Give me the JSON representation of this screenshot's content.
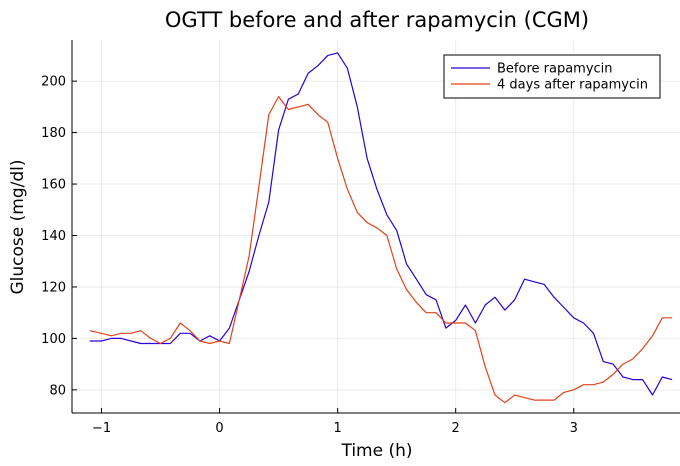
{
  "chart_data": {
    "type": "line",
    "title": "OGTT before and after rapamycin (CGM)",
    "xlabel": "Time (h)",
    "ylabel": "Glucose (mg/dl)",
    "xlim": [
      -1.25,
      3.9
    ],
    "ylim": [
      71,
      216
    ],
    "xticks": [
      -1,
      0,
      1,
      2,
      3
    ],
    "xtick_labels": [
      "−1",
      "0",
      "1",
      "2",
      "3"
    ],
    "yticks": [
      80,
      100,
      120,
      140,
      160,
      180,
      200
    ],
    "ytick_labels": [
      "80",
      "100",
      "120",
      "140",
      "160",
      "180",
      "200"
    ],
    "grid": true,
    "legend": {
      "position": "top-right"
    },
    "series": [
      {
        "name": "Before rapamycin",
        "color": "#2a00d5",
        "x": [
          -1.1,
          -1.0,
          -0.917,
          -0.833,
          -0.75,
          -0.667,
          -0.583,
          -0.5,
          -0.417,
          -0.333,
          -0.25,
          -0.167,
          -0.083,
          0.0,
          0.083,
          0.167,
          0.25,
          0.333,
          0.417,
          0.5,
          0.583,
          0.667,
          0.75,
          0.833,
          0.917,
          1.0,
          1.083,
          1.167,
          1.25,
          1.333,
          1.417,
          1.5,
          1.583,
          1.667,
          1.75,
          1.833,
          1.917,
          2.0,
          2.083,
          2.167,
          2.25,
          2.333,
          2.417,
          2.5,
          2.583,
          2.667,
          2.75,
          2.833,
          2.917,
          3.0,
          3.083,
          3.167,
          3.25,
          3.333,
          3.417,
          3.5,
          3.583,
          3.667,
          3.75,
          3.833
        ],
        "y": [
          99,
          99,
          100,
          100,
          99,
          98,
          98,
          98,
          98,
          102,
          102,
          99,
          101,
          99,
          104,
          115,
          126,
          140,
          153,
          181,
          193,
          195,
          203,
          206,
          210,
          211,
          205,
          190,
          170,
          158,
          148,
          142,
          129,
          123,
          117,
          115,
          104,
          107,
          113,
          106,
          113,
          116,
          111,
          115,
          123,
          122,
          121,
          116,
          112,
          108,
          106,
          102,
          91,
          90,
          85,
          84,
          84,
          78,
          85,
          84
        ]
      },
      {
        "name": "4 days after rapamycin",
        "color": "#e0421b",
        "x": [
          -1.1,
          -1.0,
          -0.917,
          -0.833,
          -0.75,
          -0.667,
          -0.583,
          -0.5,
          -0.417,
          -0.333,
          -0.25,
          -0.167,
          -0.083,
          0.0,
          0.083,
          0.167,
          0.25,
          0.333,
          0.417,
          0.5,
          0.583,
          0.667,
          0.75,
          0.833,
          0.917,
          1.0,
          1.083,
          1.167,
          1.25,
          1.333,
          1.417,
          1.5,
          1.583,
          1.667,
          1.75,
          1.833,
          1.917,
          2.0,
          2.083,
          2.167,
          2.25,
          2.333,
          2.417,
          2.5,
          2.583,
          2.667,
          2.75,
          2.833,
          2.917,
          3.0,
          3.083,
          3.167,
          3.25,
          3.333,
          3.417,
          3.5,
          3.583,
          3.667,
          3.75,
          3.833
        ],
        "y": [
          103,
          102,
          101,
          102,
          102,
          103,
          100,
          98,
          100,
          106,
          103,
          99,
          98,
          99,
          98,
          115,
          132,
          159,
          187,
          194,
          189,
          190,
          191,
          187,
          184,
          170,
          158,
          149,
          145,
          143,
          140,
          127,
          119,
          114,
          110,
          110,
          106,
          106,
          106,
          103,
          89,
          78,
          75,
          78,
          77,
          76,
          76,
          76,
          79,
          80,
          82,
          82,
          83,
          86,
          90,
          92,
          96,
          101,
          108,
          108
        ]
      }
    ]
  }
}
